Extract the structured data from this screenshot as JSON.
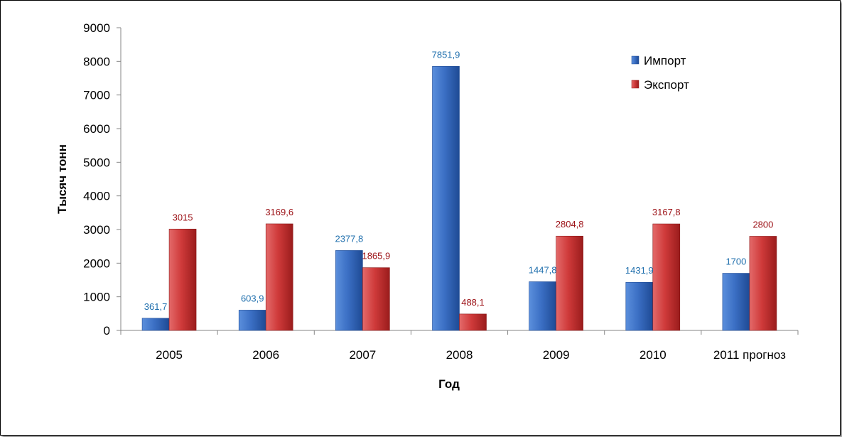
{
  "colors": {
    "import": "#3b6fc4",
    "export": "#cf3a3a",
    "import_label": "#1f6fad",
    "export_label": "#9b0f14"
  },
  "chart_data": {
    "type": "bar",
    "title": "",
    "xlabel": "Год",
    "ylabel": "Тысяч тонн",
    "ylim": [
      0,
      9000
    ],
    "yticks": [
      0,
      1000,
      2000,
      3000,
      4000,
      5000,
      6000,
      7000,
      8000,
      9000
    ],
    "categories": [
      "2005",
      "2006",
      "2007",
      "2008",
      "2009",
      "2010",
      "2011 прогноз"
    ],
    "series": [
      {
        "name": "Импорт",
        "values": [
          361.7,
          603.9,
          2377.8,
          7851.9,
          1447.8,
          1431.9,
          1700
        ],
        "labels": [
          "361,7",
          "603,9",
          "2377,8",
          "7851,9",
          "1447,8",
          "1431,9",
          "1700"
        ]
      },
      {
        "name": "Экспорт",
        "values": [
          3015,
          3169.6,
          1865.9,
          488.1,
          2804.8,
          3167.8,
          2800
        ],
        "labels": [
          "3015",
          "3169,6",
          "1865,9",
          "488,1",
          "2804,8",
          "3167,8",
          "2800"
        ]
      }
    ],
    "legend_position": "top-right",
    "grid": false
  }
}
